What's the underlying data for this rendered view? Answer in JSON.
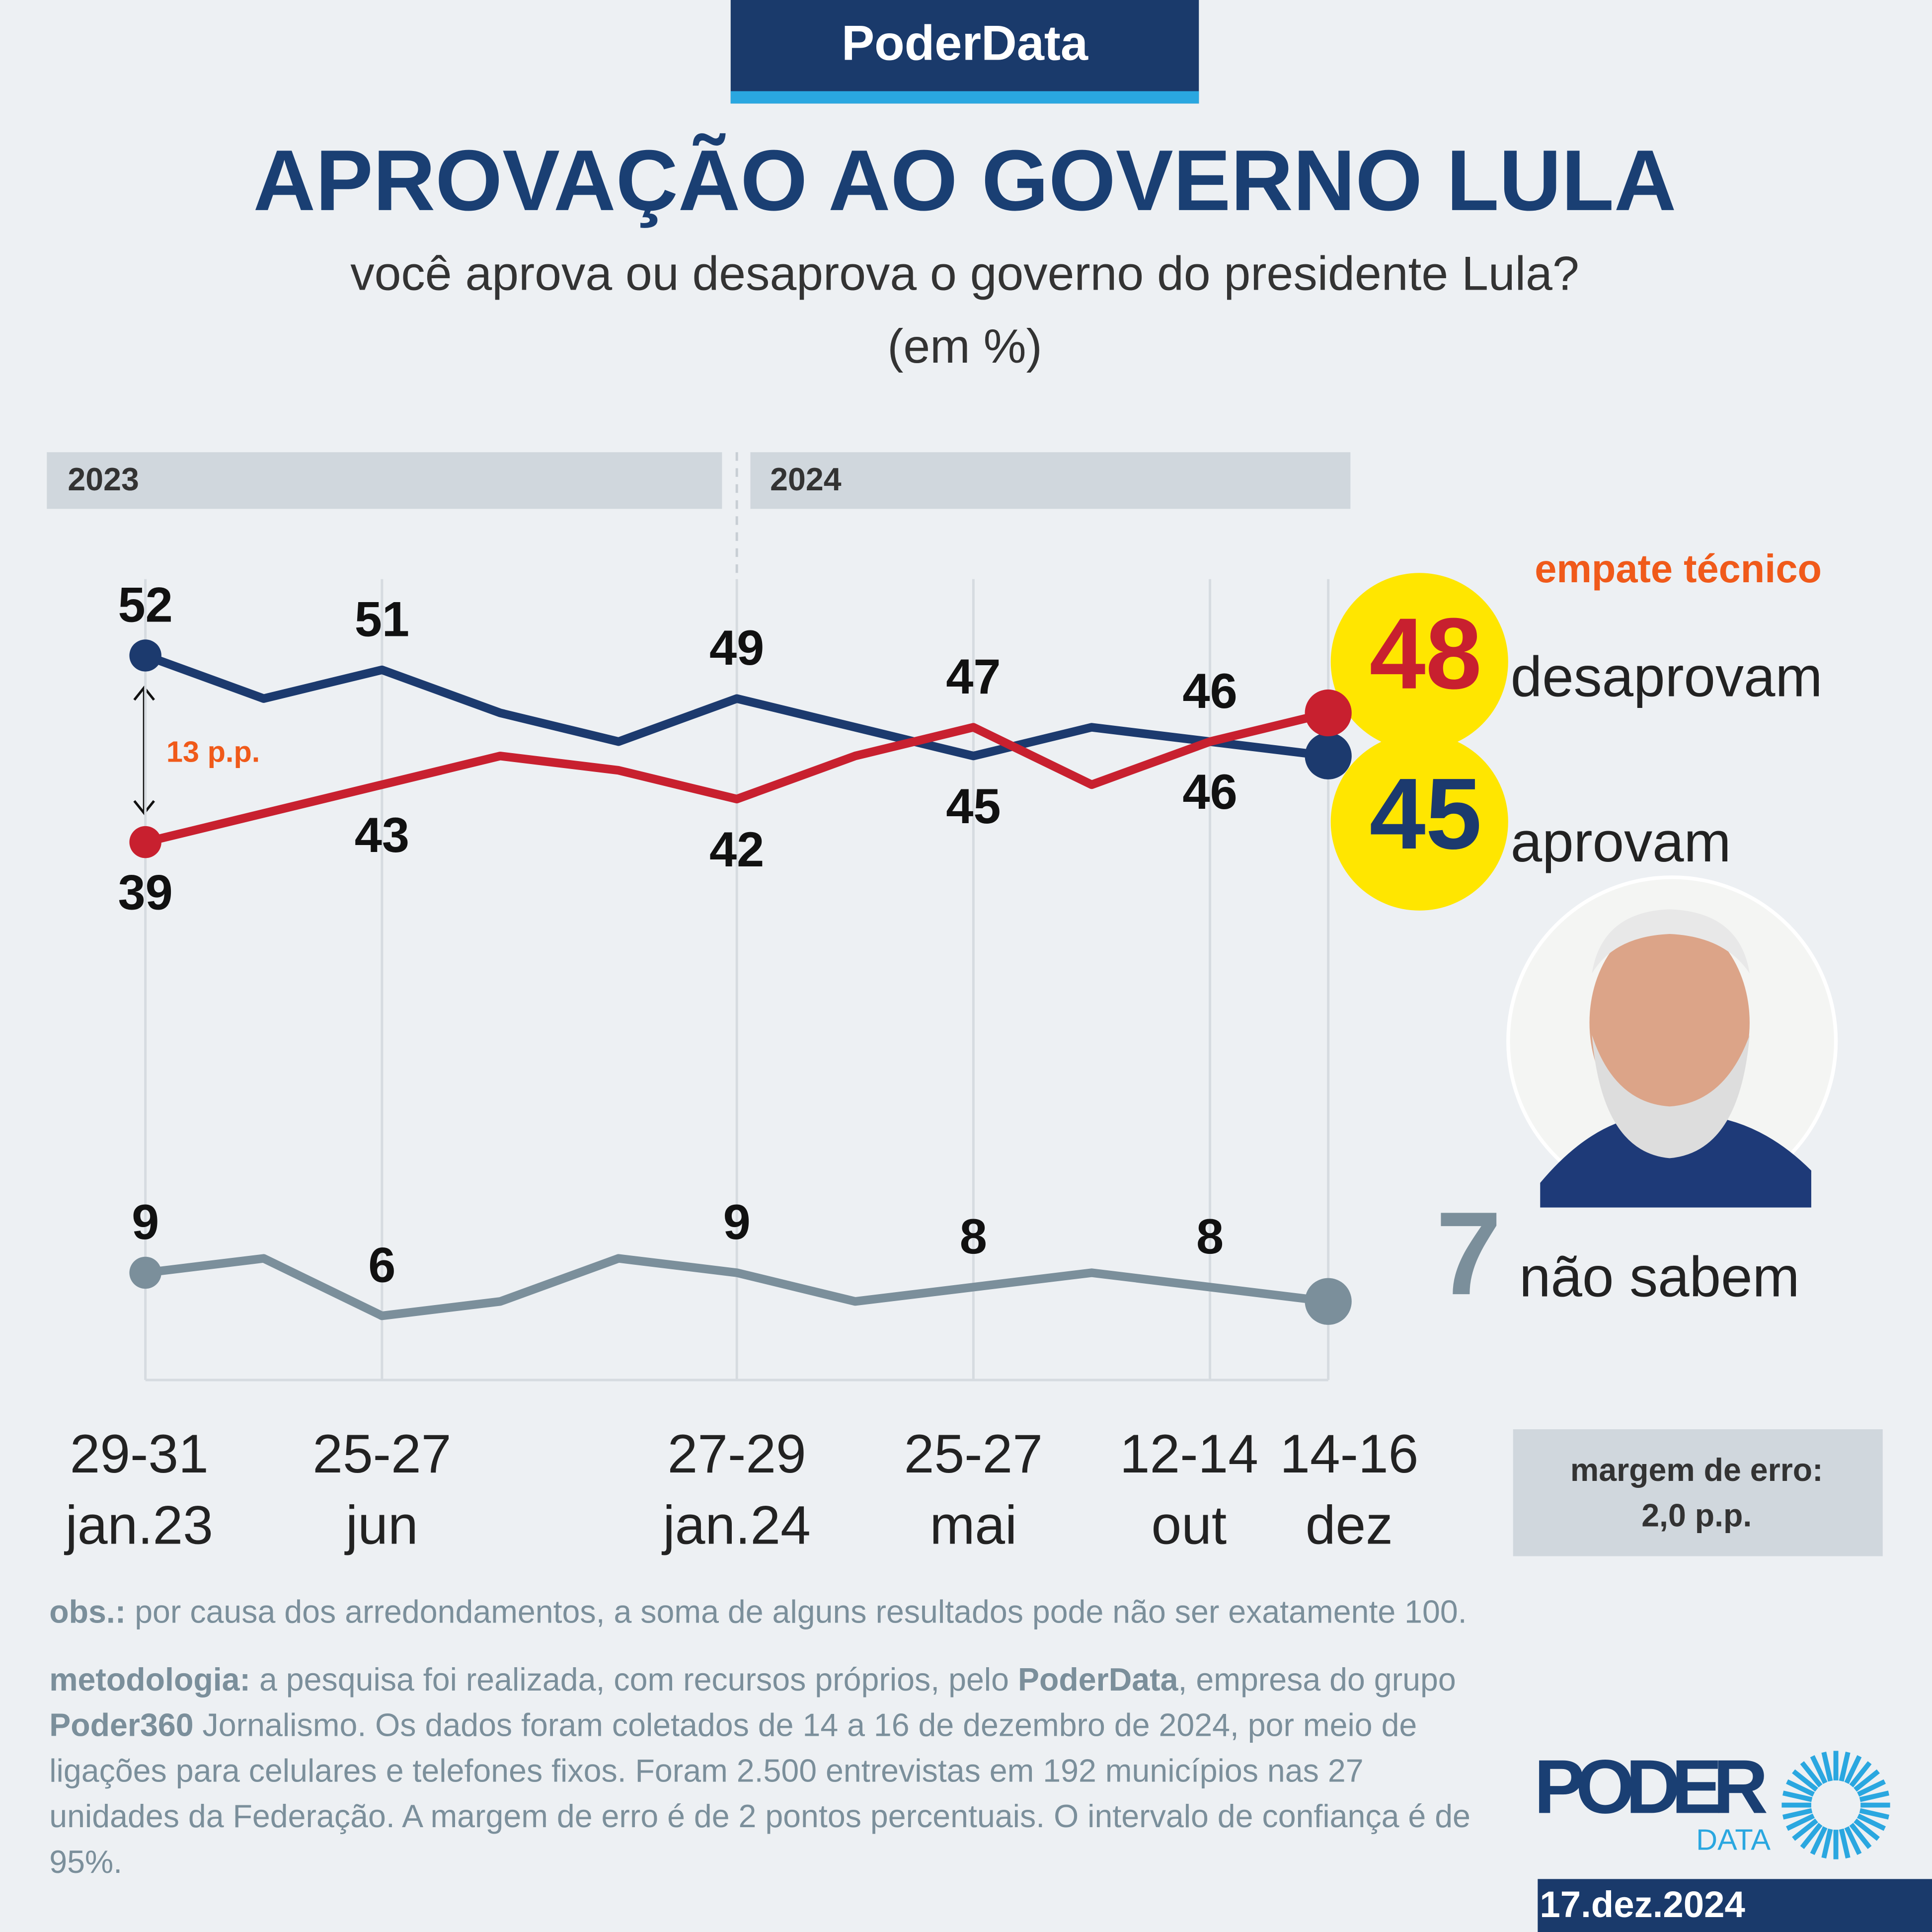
{
  "brand": "PoderData",
  "chart_data": {
    "type": "line",
    "title": "APROVAÇÃO AO GOVERNO LULA",
    "subtitle": "você aprova ou desaprova o governo do presidente Lula?",
    "unit_note": "(em %)",
    "periods": [
      "2023",
      "2024"
    ],
    "categories": [
      "29-31\njan.23",
      null,
      "25-27\njun",
      null,
      null,
      "27-29\njan.24",
      null,
      "25-27\nmai",
      null,
      "12-14\nout",
      "14-16\ndez"
    ],
    "series": [
      {
        "name": "aprovam",
        "color": "#1c3a6e",
        "values": [
          52,
          49,
          51,
          48,
          46,
          49,
          47,
          45,
          47,
          46,
          45
        ]
      },
      {
        "name": "desaprovam",
        "color": "#c8202f",
        "values": [
          39,
          41,
          43,
          45,
          44,
          42,
          45,
          47,
          43,
          46,
          48
        ]
      },
      {
        "name": "não sabem",
        "color": "#7b8f9b",
        "values": [
          9,
          10,
          6,
          7,
          10,
          9,
          7,
          8,
          9,
          8,
          7
        ]
      }
    ],
    "ylim": [
      0,
      60
    ],
    "annotations": {
      "tie": "empate técnico",
      "gap": "13 p.p."
    },
    "margin": {
      "label": "margem de erro:",
      "value": "2,0 p.p."
    }
  },
  "notes": {
    "obs_label": "obs.:",
    "obs": "por causa dos arredondamentos, a soma de alguns resultados pode não ser exatamente 100.",
    "method_label": "metodologia:",
    "method_runs": [
      {
        "text": "a pesquisa foi realizada, com recursos próprios, pelo",
        "bold": false
      },
      {
        "text": "PoderData",
        "bold": true
      },
      {
        "text": ", empresa do grupo",
        "bold": false
      },
      {
        "text": "Poder360",
        "bold": true
      },
      {
        "text": "Jornalismo. Os dados foram coletados de 14 a 16 de dezembro de 2024, por meio de ligações para celulares e telefones fixos. Foram 2.500 entrevistas em 192 municípios nas 27 unidades da Federação. A margem de erro é de 2 pontos percentuais. O intervalo de confiança é de 95%.",
        "bold": false
      }
    ]
  },
  "logo": {
    "word": "PODER",
    "sub": "DATA"
  },
  "date": "17.dez.2024"
}
